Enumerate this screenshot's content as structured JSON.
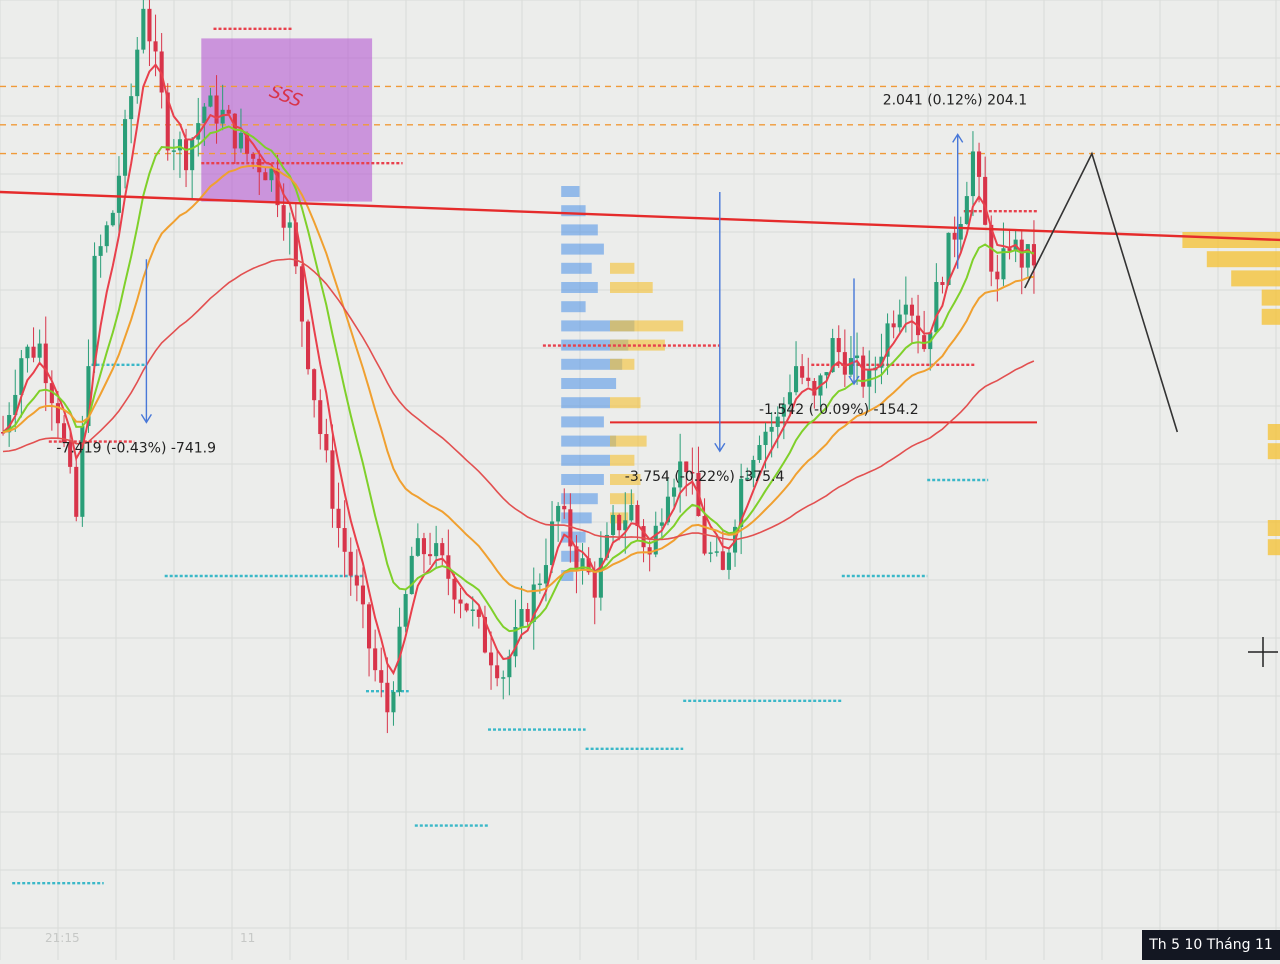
{
  "chart_data": {
    "type": "candlestick",
    "title": "",
    "grid": true,
    "colors": {
      "background": "#ecedeb",
      "grid": "#d9dbd8",
      "candle_up": "#2a9e78",
      "candle_down": "#d8344a",
      "ema_fast": "#e8404c",
      "ema_mid": "#7fd02a",
      "ema_slow": "#f0a030",
      "ma_long": "#e25050",
      "resistance_line": "#e52b2b",
      "dashed_level": "#f09a38",
      "volume_profile_blue": "#4a90e8",
      "volume_profile_orange": "#f5c030",
      "supply_zone": "#b04ad0",
      "swing_low_marker": "#3ab8c8",
      "swing_high_marker": "#e8404c",
      "measure_arrow": "#4878d8",
      "projection": "#333333"
    },
    "ylim": [
      88,
      108
    ],
    "y_axis_direction": "up",
    "price_path": [
      [
        0,
        55
      ],
      [
        3,
        63
      ],
      [
        6,
        64
      ],
      [
        9,
        57
      ],
      [
        12,
        46
      ],
      [
        15,
        72
      ],
      [
        18,
        78
      ],
      [
        21,
        90
      ],
      [
        23,
        100
      ],
      [
        25,
        93
      ],
      [
        27,
        86
      ],
      [
        30,
        84
      ],
      [
        33,
        89
      ],
      [
        36,
        88
      ],
      [
        40,
        84
      ],
      [
        44,
        82
      ],
      [
        47,
        76
      ],
      [
        49,
        67
      ],
      [
        52,
        55
      ],
      [
        55,
        45
      ],
      [
        58,
        38
      ],
      [
        61,
        30
      ],
      [
        63,
        26
      ],
      [
        65,
        33
      ],
      [
        67,
        42
      ],
      [
        70,
        43
      ],
      [
        73,
        40
      ],
      [
        76,
        37
      ],
      [
        79,
        33
      ],
      [
        82,
        30
      ],
      [
        85,
        35
      ],
      [
        88,
        40
      ],
      [
        91,
        47
      ],
      [
        94,
        42
      ],
      [
        97,
        39
      ],
      [
        100,
        45
      ],
      [
        103,
        47
      ],
      [
        106,
        42
      ],
      [
        109,
        50
      ],
      [
        112,
        52
      ],
      [
        115,
        43
      ],
      [
        118,
        40
      ],
      [
        121,
        50
      ],
      [
        124,
        55
      ],
      [
        127,
        56
      ],
      [
        130,
        62
      ],
      [
        133,
        58
      ],
      [
        136,
        64
      ],
      [
        139,
        62
      ],
      [
        142,
        60
      ],
      [
        145,
        66
      ],
      [
        148,
        70
      ],
      [
        151,
        64
      ],
      [
        154,
        72
      ],
      [
        157,
        78
      ],
      [
        159,
        84
      ],
      [
        161,
        76
      ],
      [
        163,
        70
      ],
      [
        165,
        75
      ],
      [
        167,
        73
      ]
    ],
    "supply_zone": {
      "x0": 33,
      "x1": 61,
      "y0": 79,
      "y1": 96,
      "label": "SSS"
    },
    "resistance_line": {
      "x0": 0,
      "y0": 80,
      "x1": 210,
      "y1": 75
    },
    "dashed_levels": [
      91,
      87,
      84
    ],
    "horizontal_level": {
      "x0": 100,
      "x1": 170,
      "y": 56
    },
    "swing_lows": [
      {
        "x0": 15,
        "x1": 24,
        "y": 62
      },
      {
        "x0": 27,
        "x1": 60,
        "y": 40
      },
      {
        "x0": 60,
        "x1": 67,
        "y": 28
      },
      {
        "x0": 68,
        "x1": 80,
        "y": 14
      },
      {
        "x0": 80,
        "x1": 96,
        "y": 24
      },
      {
        "x0": 96,
        "x1": 112,
        "y": 22
      },
      {
        "x0": 112,
        "x1": 138,
        "y": 27
      },
      {
        "x0": 138,
        "x1": 152,
        "y": 40
      },
      {
        "x0": 152,
        "x1": 162,
        "y": 50
      },
      {
        "x0": 2,
        "x1": 17,
        "y": 8
      }
    ],
    "swing_highs": [
      {
        "x0": 35,
        "x1": 48,
        "y": 97
      },
      {
        "x0": 33,
        "x1": 66,
        "y": 83
      },
      {
        "x0": 89,
        "x1": 118,
        "y": 64
      },
      {
        "x0": 133,
        "x1": 160,
        "y": 62
      },
      {
        "x0": 158,
        "x1": 170,
        "y": 78
      },
      {
        "x0": 8,
        "x1": 22,
        "y": 54
      }
    ],
    "measurements": [
      {
        "x": 24,
        "y_from": 73,
        "y_to": 56,
        "label": "-7.419 (-0.43%) -741.9"
      },
      {
        "x": 118,
        "y_from": 80,
        "y_to": 53,
        "label": "-3.754 (-0.22%) -375.4"
      },
      {
        "x": 140,
        "y_from": 71,
        "y_to": 60,
        "label": "-1.542 (-0.09%) -154.2"
      },
      {
        "x": 157,
        "y_from": 72,
        "y_to": 86,
        "label": "2.041 (0.12%) 204.1"
      }
    ],
    "projection": [
      [
        168,
        70
      ],
      [
        179,
        84
      ],
      [
        193,
        55
      ]
    ],
    "volume_profile": {
      "x_anchor": 92,
      "blue": [
        [
          80,
          3
        ],
        [
          78,
          4
        ],
        [
          76,
          6
        ],
        [
          74,
          7
        ],
        [
          72,
          5
        ],
        [
          70,
          6
        ],
        [
          68,
          4
        ],
        [
          66,
          12
        ],
        [
          64,
          11
        ],
        [
          62,
          10
        ],
        [
          60,
          9
        ],
        [
          58,
          8
        ],
        [
          56,
          7
        ],
        [
          54,
          9
        ],
        [
          52,
          8
        ],
        [
          50,
          7
        ],
        [
          48,
          6
        ],
        [
          46,
          5
        ],
        [
          44,
          4
        ],
        [
          42,
          3
        ],
        [
          40,
          2
        ]
      ],
      "orange": [
        [
          72,
          4
        ],
        [
          70,
          7
        ],
        [
          66,
          12
        ],
        [
          64,
          9
        ],
        [
          62,
          4
        ],
        [
          58,
          5
        ],
        [
          54,
          6
        ],
        [
          52,
          4
        ],
        [
          50,
          5
        ],
        [
          48,
          4
        ],
        [
          46,
          3
        ]
      ]
    },
    "right_profile": [
      [
        75,
        16
      ],
      [
        73,
        12
      ],
      [
        71,
        8
      ],
      [
        69,
        3
      ],
      [
        67,
        3
      ],
      [
        55,
        2
      ],
      [
        53,
        2
      ],
      [
        45,
        2
      ],
      [
        43,
        2
      ]
    ],
    "bar_count": 170,
    "x_tick_labels": [
      "21:15",
      "11"
    ]
  },
  "footer": {
    "date_label": "Th 5 10 Tháng 11"
  }
}
